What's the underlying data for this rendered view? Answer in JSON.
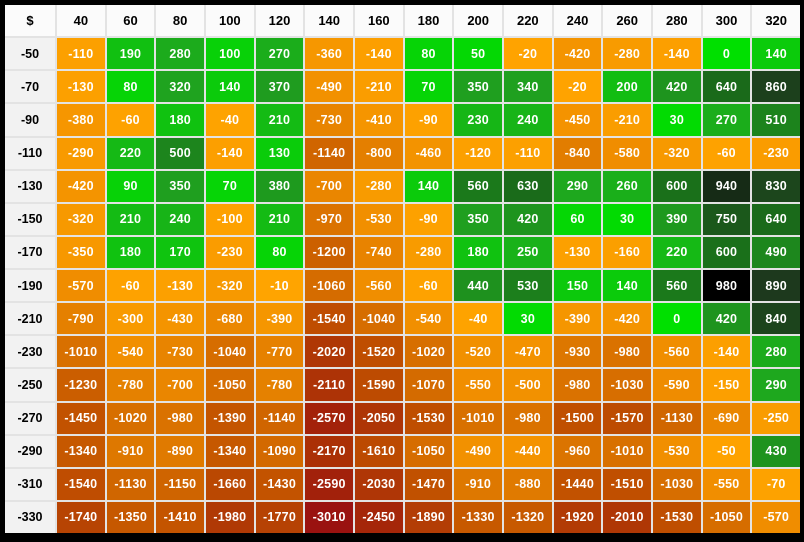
{
  "chart_data": {
    "type": "heatmap",
    "title": "",
    "corner_label": "$",
    "x_categories": [
      "40",
      "60",
      "80",
      "100",
      "120",
      "140",
      "160",
      "180",
      "200",
      "220",
      "240",
      "260",
      "280",
      "300",
      "320"
    ],
    "y_categories": [
      "-50",
      "-70",
      "-90",
      "-110",
      "-130",
      "-150",
      "-170",
      "-190",
      "-210",
      "-230",
      "-250",
      "-270",
      "-290",
      "-310",
      "-330"
    ],
    "values": [
      [
        -110,
        190,
        280,
        100,
        270,
        -360,
        -140,
        80,
        50,
        -20,
        -420,
        -280,
        -140,
        0,
        140
      ],
      [
        -130,
        80,
        320,
        140,
        370,
        -490,
        -210,
        70,
        350,
        340,
        -20,
        200,
        420,
        640,
        860
      ],
      [
        -380,
        -60,
        180,
        -40,
        210,
        -730,
        -410,
        -90,
        230,
        240,
        -450,
        -210,
        30,
        270,
        510
      ],
      [
        -290,
        220,
        500,
        -140,
        130,
        -1140,
        -800,
        -460,
        -120,
        -110,
        -840,
        -580,
        -320,
        -60,
        -230
      ],
      [
        -420,
        90,
        350,
        70,
        380,
        -700,
        -280,
        140,
        560,
        630,
        290,
        260,
        600,
        940,
        830
      ],
      [
        -320,
        210,
        240,
        -100,
        210,
        -970,
        -530,
        -90,
        350,
        420,
        60,
        30,
        390,
        750,
        640
      ],
      [
        -350,
        180,
        170,
        -230,
        80,
        -1200,
        -740,
        -280,
        180,
        250,
        -130,
        -160,
        220,
        600,
        490
      ],
      [
        -570,
        -60,
        -130,
        -320,
        -10,
        -1060,
        -560,
        -60,
        440,
        530,
        150,
        140,
        560,
        980,
        890
      ],
      [
        -790,
        -300,
        -430,
        -680,
        -390,
        -1540,
        -1040,
        -540,
        -40,
        30,
        -390,
        -420,
        0,
        420,
        840
      ],
      [
        -1010,
        -540,
        -730,
        -1040,
        -770,
        -2020,
        -1520,
        -1020,
        -520,
        -470,
        -930,
        -980,
        -560,
        -140,
        280
      ],
      [
        -1230,
        -780,
        -700,
        -1050,
        -780,
        -2110,
        -1590,
        -1070,
        -550,
        -500,
        -980,
        -1030,
        -590,
        -150,
        290
      ],
      [
        -1450,
        -1020,
        -980,
        -1390,
        -1140,
        -2570,
        -2050,
        -1530,
        -1010,
        -980,
        -1500,
        -1570,
        -1130,
        -690,
        -250
      ],
      [
        -1340,
        -910,
        -890,
        -1340,
        -1090,
        -2170,
        -1610,
        -1050,
        -490,
        -440,
        -960,
        -1010,
        -530,
        -50,
        430
      ],
      [
        -1540,
        -1130,
        -1150,
        -1660,
        -1430,
        -2590,
        -2030,
        -1470,
        -910,
        -880,
        -1440,
        -1510,
        -1030,
        -550,
        -70
      ],
      [
        -1740,
        -1350,
        -1410,
        -1980,
        -1770,
        -3010,
        -2450,
        -1890,
        -1330,
        -1320,
        -1920,
        -2010,
        -1530,
        -1050,
        -570
      ]
    ],
    "value_range": [
      -3010,
      980
    ],
    "legend": "none",
    "grid": "on",
    "notes": "positive values green gradient, negative values orange-to-dark-red gradient, maximum value cell rendered black"
  },
  "style": {
    "frame_bg": "#000000",
    "grid_line": "#E3E3E3",
    "header_bg": "#FBFBFB",
    "label_bg": "#F2F2F2",
    "header_text": "#000000",
    "cell_text": "#FFFFFF",
    "max_highlight_value": 980,
    "max_cell_bg": "#000000",
    "positive_stops": [
      [
        0,
        "#00E000"
      ],
      [
        150,
        "#0CC90C"
      ],
      [
        300,
        "#1FA61F"
      ],
      [
        450,
        "#1E901E"
      ],
      [
        600,
        "#1A701A"
      ],
      [
        750,
        "#1B581B"
      ],
      [
        900,
        "#1D371D"
      ],
      [
        950,
        "#142814"
      ]
    ],
    "negative_stops": [
      [
        -3010,
        "#9A1210"
      ],
      [
        -2700,
        "#A01D0C"
      ],
      [
        -2400,
        "#A62808"
      ],
      [
        -2100,
        "#AD3306"
      ],
      [
        -1800,
        "#B54104"
      ],
      [
        -1500,
        "#C04F00"
      ],
      [
        -1200,
        "#CC6000"
      ],
      [
        -900,
        "#DF7900"
      ],
      [
        -600,
        "#EF8C00"
      ],
      [
        -300,
        "#F89A00"
      ],
      [
        0,
        "#FFA400"
      ]
    ]
  }
}
